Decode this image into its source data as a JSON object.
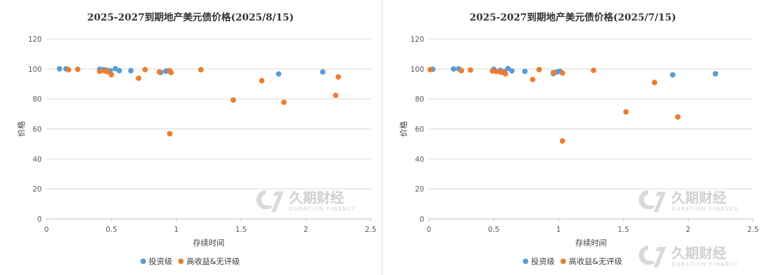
{
  "colors": {
    "investment_grade": "#5B9BD5",
    "high_yield": "#ED7D31",
    "gridline": "#d9d9d9",
    "watermark": "#d0d0d0"
  },
  "watermark": {
    "text": "久期财经",
    "sub": "DURATION FINANCE"
  },
  "chart_data": [
    {
      "type": "scatter",
      "title": "2025-2027到期地产美元债价格(2025/8/15)",
      "xlabel": "存续时间",
      "ylabel": "价格",
      "xlim": [
        0,
        2.5
      ],
      "ylim": [
        0,
        120
      ],
      "xticks": [
        "0",
        "0.5",
        "1",
        "1.5",
        "2",
        "2.5"
      ],
      "yticks": [
        "0",
        "20",
        "40",
        "60",
        "80",
        "100",
        "120"
      ],
      "legend_position": "bottom",
      "series": [
        {
          "name": "投资级",
          "color_key": "investment_grade",
          "x": [
            0.1,
            0.15,
            0.41,
            0.44,
            0.46,
            0.49,
            0.53,
            0.56,
            0.65,
            0.88,
            0.92,
            0.94,
            1.79,
            2.13
          ],
          "y": [
            100.1,
            100.1,
            99.8,
            99.5,
            99.3,
            98.8,
            100.2,
            98.9,
            98.9,
            97.7,
            98.5,
            98.8,
            96.7,
            98.0
          ]
        },
        {
          "name": "高收益&无评级",
          "color_key": "high_yield",
          "x": [
            0.17,
            0.24,
            0.41,
            0.45,
            0.47,
            0.5,
            0.71,
            0.76,
            0.87,
            0.95,
            0.95,
            0.96,
            1.19,
            1.44,
            1.66,
            1.83,
            2.23,
            2.25
          ],
          "y": [
            99.5,
            99.8,
            98.4,
            98.7,
            98.2,
            96.2,
            93.8,
            99.6,
            98.0,
            56.8,
            98.8,
            97.6,
            99.5,
            79.3,
            92.2,
            77.8,
            82.4,
            94.7
          ]
        }
      ]
    },
    {
      "type": "scatter",
      "title": "2025-2027到期地产美元债价格(2025/7/15)",
      "xlabel": "存续时间",
      "ylabel": "价格",
      "xlim": [
        0,
        2.5
      ],
      "ylim": [
        0,
        120
      ],
      "xticks": [
        "0",
        "0.5",
        "1",
        "1.5",
        "2",
        "2.5"
      ],
      "yticks": [
        "0",
        "20",
        "40",
        "60",
        "80",
        "100",
        "120"
      ],
      "legend_position": "bottom",
      "series": [
        {
          "name": "投资级",
          "color_key": "investment_grade",
          "x": [
            0.03,
            0.19,
            0.23,
            0.5,
            0.55,
            0.58,
            0.61,
            0.64,
            0.74,
            0.96,
            0.99,
            1.01,
            1.88,
            2.21
          ],
          "y": [
            99.8,
            100.0,
            100.1,
            99.8,
            99.1,
            98.2,
            100.3,
            98.7,
            98.4,
            96.9,
            98.1,
            98.5,
            96.1,
            96.8
          ]
        },
        {
          "name": "高收益&无评级",
          "color_key": "high_yield",
          "x": [
            0.01,
            0.25,
            0.32,
            0.49,
            0.52,
            0.55,
            0.57,
            0.59,
            0.8,
            0.85,
            0.96,
            1.03,
            1.03,
            1.27,
            1.52,
            1.74,
            1.92
          ],
          "y": [
            99.6,
            98.9,
            99.3,
            98.7,
            98.4,
            98.0,
            97.8,
            96.8,
            93.0,
            99.6,
            97.6,
            52.0,
            97.3,
            99.1,
            71.4,
            91.0,
            68.0
          ]
        }
      ]
    }
  ]
}
